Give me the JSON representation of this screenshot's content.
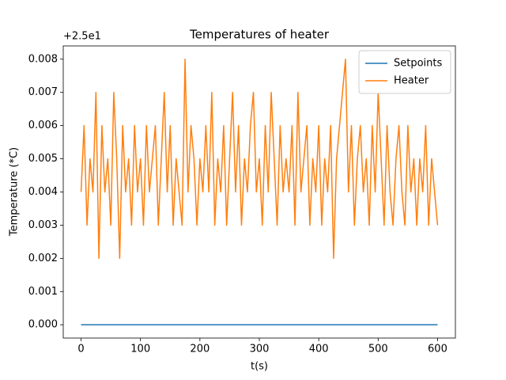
{
  "chart_data": {
    "type": "line",
    "title": "Temperatures of heater",
    "xlabel": "t(s)",
    "ylabel": "Temperature (*C)",
    "offset_text": "+2.5e1",
    "xlim": [
      -30,
      630
    ],
    "xticks": [
      0,
      100,
      200,
      300,
      400,
      500,
      600
    ],
    "ylim": [
      -0.0004,
      0.0084
    ],
    "yticks": [
      {
        "value": 0,
        "label": "0.000"
      },
      {
        "value": 0.001,
        "label": "0.001"
      },
      {
        "value": 0.002,
        "label": "0.002"
      },
      {
        "value": 0.003,
        "label": "0.003"
      },
      {
        "value": 0.004,
        "label": "0.004"
      },
      {
        "value": 0.005,
        "label": "0.005"
      },
      {
        "value": 0.006,
        "label": "0.006"
      },
      {
        "value": 0.007,
        "label": "0.007"
      },
      {
        "value": 0.008,
        "label": "0.008"
      }
    ],
    "legend": "upper right",
    "series": [
      {
        "name": "Setpoints",
        "color": "#1f77b4",
        "x": [
          0,
          600
        ],
        "values": [
          0,
          0
        ]
      },
      {
        "name": "Heater",
        "color": "#ff7f0e",
        "x": [
          0,
          5,
          10,
          15,
          20,
          25,
          30,
          35,
          40,
          45,
          50,
          55,
          60,
          65,
          70,
          75,
          80,
          85,
          90,
          95,
          100,
          105,
          110,
          115,
          120,
          125,
          130,
          135,
          140,
          145,
          150,
          155,
          160,
          165,
          170,
          175,
          180,
          185,
          190,
          195,
          200,
          205,
          210,
          215,
          220,
          225,
          230,
          235,
          240,
          245,
          250,
          255,
          260,
          265,
          270,
          275,
          280,
          285,
          290,
          295,
          300,
          305,
          310,
          315,
          320,
          325,
          330,
          335,
          340,
          345,
          350,
          355,
          360,
          365,
          370,
          375,
          380,
          385,
          390,
          395,
          400,
          405,
          410,
          415,
          420,
          425,
          430,
          435,
          440,
          445,
          450,
          455,
          460,
          465,
          470,
          475,
          480,
          485,
          490,
          495,
          500,
          505,
          510,
          515,
          520,
          525,
          530,
          535,
          540,
          545,
          550,
          555,
          560,
          565,
          570,
          575,
          580,
          585,
          590,
          595,
          600
        ],
        "values": [
          0.004,
          0.006,
          0.003,
          0.005,
          0.004,
          0.007,
          0.002,
          0.006,
          0.004,
          0.005,
          0.003,
          0.007,
          0.005,
          0.002,
          0.006,
          0.004,
          0.005,
          0.003,
          0.006,
          0.004,
          0.005,
          0.003,
          0.006,
          0.004,
          0.005,
          0.006,
          0.003,
          0.005,
          0.007,
          0.004,
          0.006,
          0.003,
          0.005,
          0.004,
          0.003,
          0.008,
          0.004,
          0.006,
          0.005,
          0.003,
          0.005,
          0.004,
          0.006,
          0.004,
          0.007,
          0.003,
          0.005,
          0.004,
          0.006,
          0.003,
          0.005,
          0.007,
          0.004,
          0.006,
          0.003,
          0.005,
          0.004,
          0.006,
          0.007,
          0.004,
          0.005,
          0.003,
          0.006,
          0.004,
          0.007,
          0.005,
          0.003,
          0.006,
          0.004,
          0.005,
          0.004,
          0.006,
          0.003,
          0.007,
          0.004,
          0.005,
          0.006,
          0.003,
          0.005,
          0.004,
          0.006,
          0.003,
          0.005,
          0.004,
          0.006,
          0.002,
          0.005,
          0.006,
          0.007,
          0.008,
          0.004,
          0.006,
          0.003,
          0.005,
          0.006,
          0.004,
          0.005,
          0.003,
          0.006,
          0.004,
          0.007,
          0.005,
          0.003,
          0.006,
          0.004,
          0.003,
          0.005,
          0.006,
          0.004,
          0.003,
          0.006,
          0.004,
          0.005,
          0.003,
          0.005,
          0.004,
          0.006,
          0.003,
          0.005,
          0.004,
          0.003
        ]
      }
    ]
  }
}
